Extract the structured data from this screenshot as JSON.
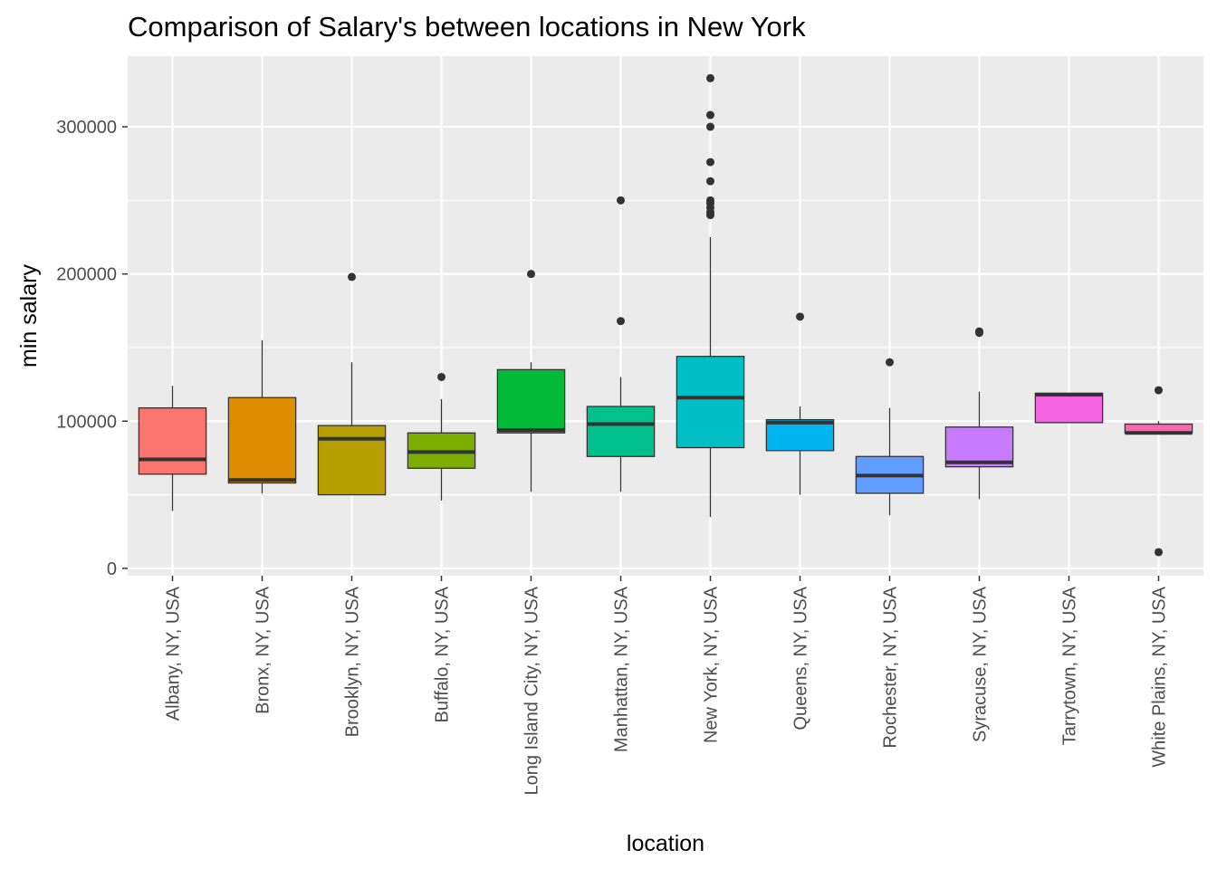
{
  "chart_data": {
    "type": "boxplot",
    "title": "Comparison of Salary's between locations in New York",
    "xlabel": "location",
    "ylabel": "min salary",
    "ylim": [
      -5000,
      348000
    ],
    "y_ticks": [
      0,
      100000,
      200000,
      300000
    ],
    "y_tick_labels": [
      "0",
      "100000",
      "200000",
      "300000"
    ],
    "grid": true,
    "legend": "none",
    "categories": [
      "Albany, NY, USA",
      "Bronx, NY, USA",
      "Brooklyn, NY, USA",
      "Buffalo, NY, USA",
      "Long Island City, NY, USA",
      "Manhattan, NY, USA",
      "New York, NY, USA",
      "Queens, NY, USA",
      "Rochester, NY, USA",
      "Syracuse, NY, USA",
      "Tarrytown, NY, USA",
      "White Plains, NY, USA"
    ],
    "colors": [
      "#F8766D",
      "#DE8C00",
      "#B79F00",
      "#7CAE00",
      "#00BA38",
      "#00C08B",
      "#00BFC4",
      "#00B4F0",
      "#619CFF",
      "#C77CFF",
      "#F564E3",
      "#FF64B0"
    ],
    "boxes": [
      {
        "whisker_low": 39000,
        "q1": 64000,
        "median": 74000,
        "q3": 109000,
        "whisker_high": 124000,
        "outliers": []
      },
      {
        "whisker_low": 51000,
        "q1": 58000,
        "median": 60000,
        "q3": 116000,
        "whisker_high": 155000,
        "outliers": []
      },
      {
        "whisker_low": 50000,
        "q1": 50000,
        "median": 88000,
        "q3": 97000,
        "whisker_high": 140000,
        "outliers": [
          198000
        ]
      },
      {
        "whisker_low": 46000,
        "q1": 68000,
        "median": 79000,
        "q3": 92000,
        "whisker_high": 115000,
        "outliers": [
          130000
        ]
      },
      {
        "whisker_low": 52000,
        "q1": 92000,
        "median": 94000,
        "q3": 135000,
        "whisker_high": 140000,
        "outliers": [
          200000
        ]
      },
      {
        "whisker_low": 52000,
        "q1": 76000,
        "median": 98000,
        "q3": 110000,
        "whisker_high": 130000,
        "outliers": [
          168000,
          250000
        ]
      },
      {
        "whisker_low": 35000,
        "q1": 82000,
        "median": 116000,
        "q3": 144000,
        "whisker_high": 225000,
        "outliers": [
          240000,
          242000,
          245000,
          248000,
          250000,
          263000,
          276000,
          300000,
          308000,
          333000
        ]
      },
      {
        "whisker_low": 50000,
        "q1": 80000,
        "median": 99000,
        "q3": 101000,
        "whisker_high": 110000,
        "outliers": [
          171000
        ]
      },
      {
        "whisker_low": 36000,
        "q1": 51000,
        "median": 63000,
        "q3": 76000,
        "whisker_high": 109000,
        "outliers": [
          140000
        ]
      },
      {
        "whisker_low": 47000,
        "q1": 69000,
        "median": 72000,
        "q3": 96000,
        "whisker_high": 120000,
        "outliers": [
          160000,
          161000
        ]
      },
      {
        "whisker_low": 99000,
        "q1": 99000,
        "median": 118000,
        "q3": 119000,
        "whisker_high": 119000,
        "outliers": []
      },
      {
        "whisker_low": 92000,
        "q1": 92000,
        "median": 92000,
        "q3": 98000,
        "whisker_high": 100000,
        "outliers": [
          11000,
          121000
        ]
      }
    ]
  }
}
